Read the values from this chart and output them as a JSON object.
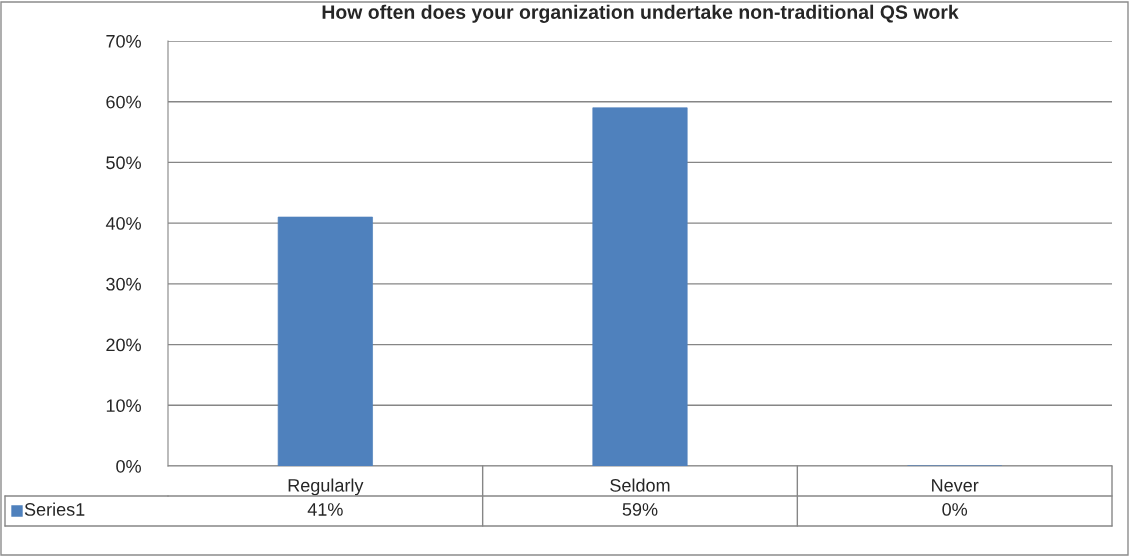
{
  "chart_data": {
    "type": "bar",
    "title": "How often does your organization undertake non-traditional QS work",
    "categories": [
      "Regularly",
      "Seldom",
      "Never"
    ],
    "series": [
      {
        "name": "Series1",
        "color": "#4f81bd",
        "values": [
          41,
          59,
          0
        ],
        "value_labels": [
          "41%",
          "59%",
          "0%"
        ]
      }
    ],
    "ylim": [
      0,
      70
    ],
    "yticks": [
      {
        "value": 0,
        "label": "0%"
      },
      {
        "value": 10,
        "label": "10%"
      },
      {
        "value": 20,
        "label": "20%"
      },
      {
        "value": 30,
        "label": "30%"
      },
      {
        "value": 40,
        "label": "40%"
      },
      {
        "value": 50,
        "label": "50%"
      },
      {
        "value": 60,
        "label": "60%"
      },
      {
        "value": 70,
        "label": "70%"
      }
    ],
    "grid": "y"
  }
}
